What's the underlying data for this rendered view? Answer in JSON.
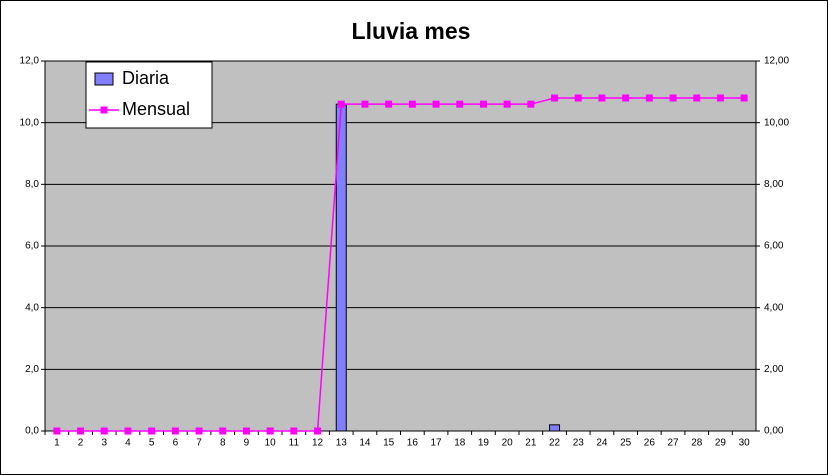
{
  "chart_data": {
    "type": "bar",
    "title": "Lluvia mes",
    "categories": [
      "1",
      "2",
      "3",
      "4",
      "5",
      "6",
      "7",
      "8",
      "9",
      "10",
      "11",
      "12",
      "13",
      "14",
      "15",
      "16",
      "17",
      "18",
      "19",
      "20",
      "21",
      "22",
      "23",
      "24",
      "25",
      "26",
      "27",
      "28",
      "29",
      "30"
    ],
    "series": [
      {
        "name": "Diaria",
        "type": "bar",
        "color": "#7f7fff",
        "values": [
          0,
          0,
          0,
          0,
          0,
          0,
          0,
          0,
          0,
          0,
          0,
          0,
          10.6,
          0,
          0,
          0,
          0,
          0,
          0,
          0,
          0,
          0.2,
          0,
          0,
          0,
          0,
          0,
          0,
          0,
          0
        ]
      },
      {
        "name": "Mensual",
        "type": "line",
        "axis": "y2",
        "color": "#ff00ff",
        "values": [
          0,
          0,
          0,
          0,
          0,
          0,
          0,
          0,
          0,
          0,
          0,
          0,
          10.6,
          10.6,
          10.6,
          10.6,
          10.6,
          10.6,
          10.6,
          10.6,
          10.6,
          10.8,
          10.8,
          10.8,
          10.8,
          10.8,
          10.8,
          10.8,
          10.8,
          10.8
        ]
      }
    ],
    "ylim": [
      0,
      12
    ],
    "yticks": [
      {
        "value": 0,
        "label": "0,0"
      },
      {
        "value": 2,
        "label": "2,0"
      },
      {
        "value": 4,
        "label": "4,0"
      },
      {
        "value": 6,
        "label": "6,0"
      },
      {
        "value": 8,
        "label": "8,0"
      },
      {
        "value": 10,
        "label": "10,0"
      },
      {
        "value": 12,
        "label": "12,0"
      }
    ],
    "y2lim": [
      0,
      12
    ],
    "y2ticks": [
      {
        "value": 0,
        "label": "0,00"
      },
      {
        "value": 2,
        "label": "2,00"
      },
      {
        "value": 4,
        "label": "4,00"
      },
      {
        "value": 6,
        "label": "6,00"
      },
      {
        "value": 8,
        "label": "8,00"
      },
      {
        "value": 10,
        "label": "10,00"
      },
      {
        "value": 12,
        "label": "12,00"
      }
    ],
    "grid": true,
    "legend": "top-left",
    "plot_background": "#c0c0c0"
  }
}
